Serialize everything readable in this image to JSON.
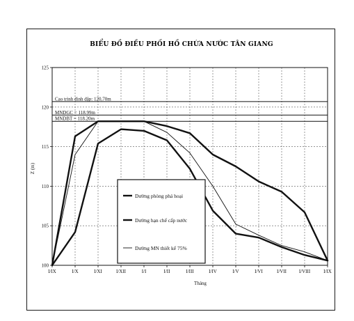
{
  "chart_data": {
    "type": "line",
    "title": "BIỂU ĐỒ ĐIỀU PHỐI HỒ CHỨA NƯỚC TÂN GIANG",
    "xlabel": "Tháng",
    "ylabel": "Z (m)",
    "ylim": [
      100,
      125
    ],
    "yticks": [
      100,
      105,
      110,
      115,
      120,
      125
    ],
    "categories": [
      "I/IX",
      "I/X",
      "I/XI",
      "I/XII",
      "I/I",
      "I/II",
      "I/III",
      "I/IV",
      "I/V",
      "I/VI",
      "I/VII",
      "I/VIII",
      "I/IX"
    ],
    "grid": "dashed vertical and horizontal",
    "reference_lines": [
      {
        "label": "Cao trình đỉnh đập: 120,70m",
        "value": 120.7
      },
      {
        "label": "MNDGC = 118.99m",
        "value": 118.99
      },
      {
        "label": "MNDBT = 118.20m",
        "value": 118.2
      }
    ],
    "series": [
      {
        "name": "Dường phòng phá hoại",
        "stroke_width": 2.4,
        "values": [
          100,
          116.3,
          118.2,
          118.2,
          118.2,
          117.6,
          116.7,
          114.0,
          112.5,
          110.6,
          109.3,
          106.7,
          100.6
        ]
      },
      {
        "name": "Dường hạn chế cấp nước",
        "stroke_width": 2.4,
        "values": [
          100,
          104.2,
          115.4,
          117.2,
          117.0,
          115.8,
          112.2,
          106.9,
          104.0,
          103.5,
          102.3,
          101.3,
          100.6
        ]
      },
      {
        "name": "Dường MN thiết kế 75%",
        "stroke_width": 0.9,
        "values": [
          100,
          114.0,
          118.2,
          118.2,
          118.2,
          116.8,
          114.2,
          110.0,
          105.2,
          103.8,
          102.5,
          101.7,
          100.6
        ]
      }
    ],
    "legend": {
      "placement": "center-left"
    }
  }
}
